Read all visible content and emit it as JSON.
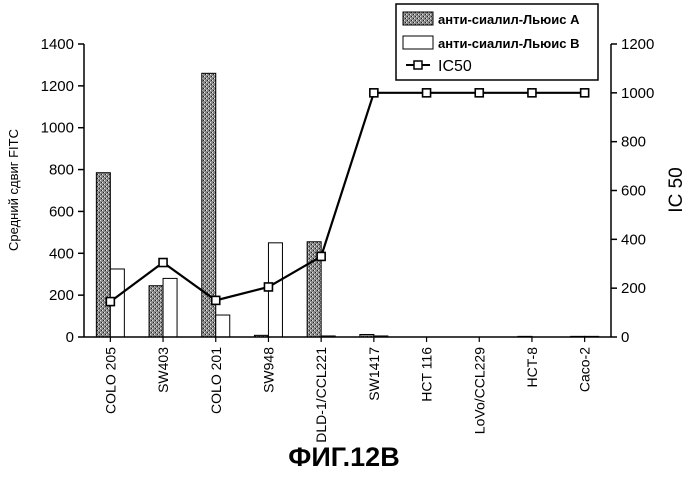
{
  "chart_data": {
    "type": "bar",
    "categories": [
      "COLO 205",
      "SW403",
      "COLO 201",
      "SW948",
      "DLD-1/CCL221",
      "SW1417",
      "HCT 116",
      "LoVo/CCL229",
      "HCT-8",
      "Caco-2"
    ],
    "series": [
      {
        "name": "анти-сиалил-Льюис А",
        "axis": "left",
        "kind": "bar",
        "color": "#555555",
        "pattern": "stipple",
        "values": [
          785,
          245,
          1260,
          8,
          455,
          12,
          0,
          0,
          3,
          3
        ]
      },
      {
        "name": "анти-сиалил-Льюис В",
        "axis": "left",
        "kind": "bar",
        "color": "#ffffff",
        "values": [
          325,
          280,
          105,
          450,
          5,
          5,
          0,
          0,
          0,
          3
        ]
      },
      {
        "name": "IC50",
        "axis": "right",
        "kind": "line",
        "marker": "square",
        "values": [
          145,
          305,
          150,
          205,
          330,
          1000,
          1000,
          1000,
          1000,
          1000
        ]
      }
    ],
    "ylabel": "Средний сдвиг FITC",
    "ylim": [
      0,
      1400
    ],
    "yticks": [
      "0",
      "200",
      "400",
      "600",
      "800",
      "1000",
      "1200",
      "1400"
    ],
    "y2label": "IC 50",
    "y2lim": [
      0,
      1200
    ],
    "y2ticks": [
      "0",
      "200",
      "400",
      "600",
      "800",
      "1000",
      "1200"
    ],
    "legend_position": "top-right",
    "grid": false
  },
  "caption": "ФИГ.12В"
}
